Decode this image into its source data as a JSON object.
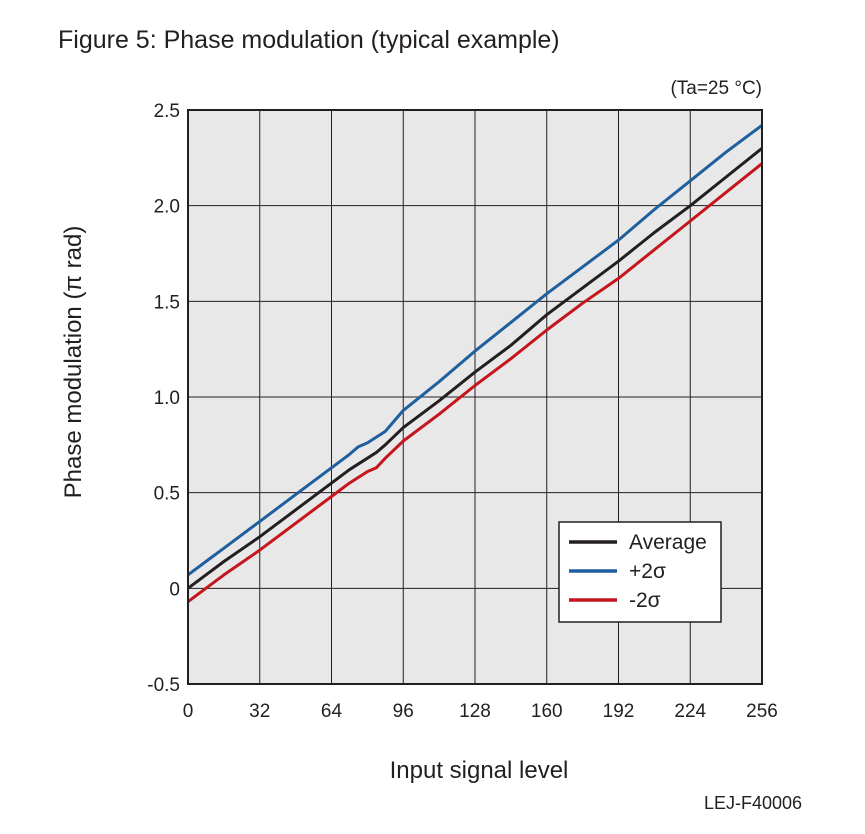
{
  "title": "Figure 5: Phase modulation (typical example)",
  "condition": "(Ta=25 °C)",
  "footer_code": "LEJ-F40006",
  "chart_data": {
    "type": "line",
    "title": "Figure 5: Phase modulation (typical example)",
    "xlabel": "Input signal level",
    "ylabel": "Phase modulation (π rad)",
    "xlim": [
      0,
      256
    ],
    "ylim": [
      -0.5,
      2.5
    ],
    "x_ticks": [
      0,
      32,
      64,
      96,
      128,
      160,
      192,
      224,
      256
    ],
    "x_tick_labels": [
      "0",
      "32",
      "64",
      "96",
      "128",
      "160",
      "192",
      "224",
      "256"
    ],
    "y_ticks": [
      -0.5,
      0,
      0.5,
      1.0,
      1.5,
      2.0,
      2.5
    ],
    "y_tick_labels": [
      "-0.5",
      "0",
      "0.5",
      "1.0",
      "1.5",
      "2.0",
      "2.5"
    ],
    "grid": true,
    "legend_position": "bottom-right",
    "series": [
      {
        "name": "Average",
        "color": "#231f20",
        "x": [
          0,
          8,
          16,
          32,
          48,
          64,
          72,
          80,
          84,
          88,
          96,
          112,
          128,
          144,
          160,
          176,
          192,
          208,
          224,
          240,
          256
        ],
        "y": [
          0.0,
          0.07,
          0.14,
          0.27,
          0.41,
          0.55,
          0.62,
          0.68,
          0.71,
          0.75,
          0.84,
          0.98,
          1.13,
          1.27,
          1.43,
          1.57,
          1.71,
          1.86,
          2.0,
          2.15,
          2.3
        ]
      },
      {
        "name": "+2σ",
        "color": "#1f5f9e",
        "x": [
          0,
          8,
          16,
          32,
          48,
          64,
          72,
          76,
          80,
          88,
          96,
          112,
          128,
          144,
          160,
          176,
          192,
          208,
          224,
          240,
          256
        ],
        "y": [
          0.07,
          0.14,
          0.21,
          0.35,
          0.49,
          0.63,
          0.7,
          0.74,
          0.76,
          0.82,
          0.93,
          1.08,
          1.24,
          1.39,
          1.54,
          1.68,
          1.82,
          1.98,
          2.13,
          2.28,
          2.42
        ]
      },
      {
        "name": "-2σ",
        "color": "#c4161c",
        "x": [
          0,
          8,
          16,
          32,
          48,
          64,
          72,
          80,
          84,
          88,
          96,
          112,
          128,
          144,
          160,
          176,
          192,
          208,
          224,
          240,
          256
        ],
        "y": [
          -0.07,
          0.0,
          0.07,
          0.2,
          0.34,
          0.48,
          0.55,
          0.61,
          0.63,
          0.68,
          0.77,
          0.91,
          1.06,
          1.2,
          1.35,
          1.49,
          1.62,
          1.77,
          1.92,
          2.07,
          2.22
        ]
      }
    ]
  }
}
